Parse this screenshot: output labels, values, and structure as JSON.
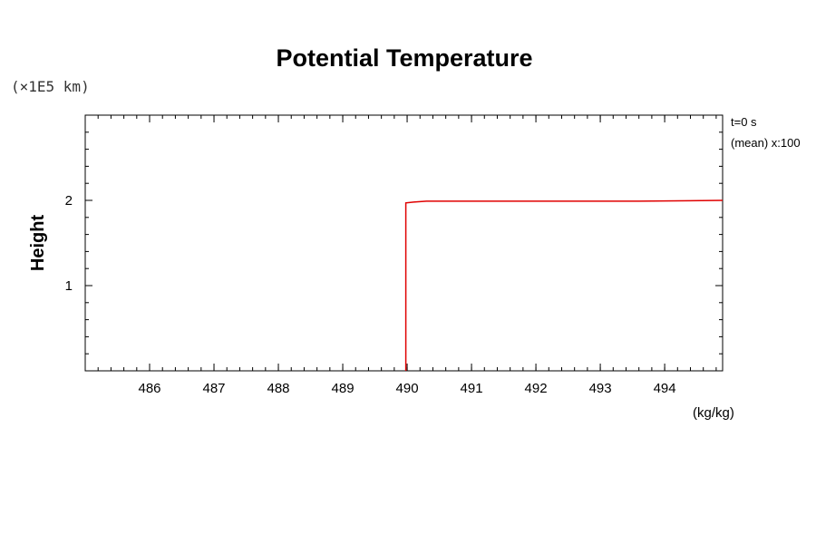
{
  "chart_data": {
    "type": "line",
    "title": "Potential Temperature",
    "ylabel": "Height",
    "y_scale_label": "(×1E5 km)",
    "x_unit_label": "(kg/kg)",
    "info_lines": [
      "t=0 s",
      "(mean) x:100"
    ],
    "xlim": [
      485.0,
      494.9
    ],
    "ylim": [
      0.0,
      3.0
    ],
    "x_ticks": [
      486,
      487,
      488,
      489,
      490,
      491,
      492,
      493,
      494
    ],
    "x_tick_labels": [
      "486",
      "487",
      "488",
      "489",
      "490",
      "491",
      "492",
      "493",
      "494"
    ],
    "y_ticks": [
      1,
      2
    ],
    "y_tick_labels": [
      "1",
      "2"
    ],
    "grid": false,
    "series": [
      {
        "color": "#e00000",
        "x": [
          489.98,
          489.98,
          490.1,
          490.3,
          491.0,
          493.6,
          494.9
        ],
        "y": [
          0.0,
          1.97,
          1.98,
          1.99,
          1.99,
          1.99,
          2.0
        ]
      }
    ]
  }
}
